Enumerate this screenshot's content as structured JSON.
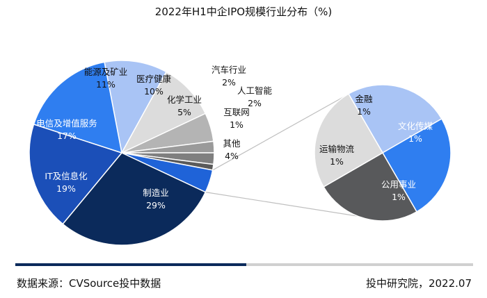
{
  "title": "2022年H1中企IPO规模行业分布（%)",
  "chart_data": [
    {
      "type": "pie",
      "title": "2022年H1中企IPO规模行业分布（%)",
      "slices": [
        {
          "label": "能源及矿业",
          "value": 11,
          "value_label": "11%",
          "color": "#a9c4f5"
        },
        {
          "label": "医疗健康",
          "value": 10,
          "value_label": "10%",
          "color": "#dcdcdc"
        },
        {
          "label": "化学工业",
          "value": 5,
          "value_label": "5%",
          "color": "#b4b4b4"
        },
        {
          "label": "汽车行业",
          "value": 2,
          "value_label": "2%",
          "color": "#9a9a9a"
        },
        {
          "label": "人工智能",
          "value": 2,
          "value_label": "2%",
          "color": "#7f7f7f"
        },
        {
          "label": "互联网",
          "value": 1,
          "value_label": "1%",
          "color": "#5a5a5a"
        },
        {
          "label": "其他",
          "value": 4,
          "value_label": "4%",
          "color": "#1f63d8"
        },
        {
          "label": "制造业",
          "value": 29,
          "value_label": "29%",
          "color": "#0b2a5b"
        },
        {
          "label": "IT及信息化",
          "value": 19,
          "value_label": "19%",
          "color": "#1b4fb8"
        },
        {
          "label": "电信及增值服务",
          "value": 17,
          "value_label": "17%",
          "color": "#2f7ef0"
        }
      ]
    },
    {
      "type": "pie",
      "title": "",
      "slices": [
        {
          "label": "金融",
          "value": 1,
          "value_label": "1%",
          "color": "#a9c4f5"
        },
        {
          "label": "文化传媒",
          "value": 1,
          "value_label": "1%",
          "color": "#2f7ef0"
        },
        {
          "label": "公用事业",
          "value": 1,
          "value_label": "1%",
          "color": "#58595b"
        },
        {
          "label": "运输物流",
          "value": 1,
          "value_label": "1%",
          "color": "#dcdcdc"
        }
      ]
    }
  ],
  "footer": {
    "source": "数据来源：CVSource投中数据",
    "credit": "投中研究院，2022.07"
  },
  "colors": {
    "accent_dark": "#0b2a5b",
    "accent_light": "#d0d0d0"
  }
}
